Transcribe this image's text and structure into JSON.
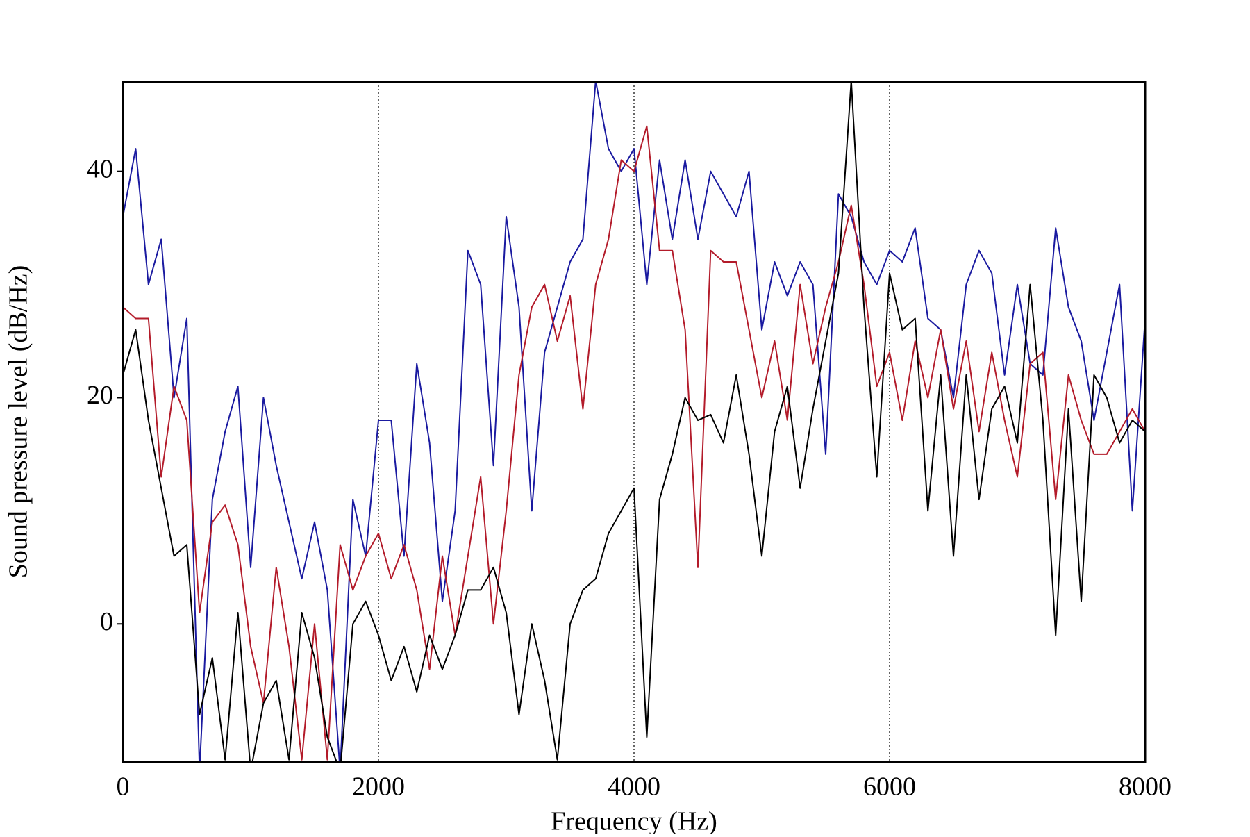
{
  "chart_data": {
    "type": "line",
    "xlabel": "Frequency (Hz)",
    "ylabel": "Sound pressure level (dB/Hz)",
    "x": [
      0,
      100,
      200,
      300,
      400,
      500,
      600,
      700,
      800,
      900,
      1000,
      1100,
      1200,
      1300,
      1400,
      1500,
      1600,
      1700,
      1800,
      1900,
      2000,
      2100,
      2200,
      2300,
      2400,
      2500,
      2600,
      2700,
      2800,
      2900,
      3000,
      3100,
      3200,
      3300,
      3400,
      3500,
      3600,
      3700,
      3800,
      3900,
      4000,
      4100,
      4200,
      4300,
      4400,
      4500,
      4600,
      4700,
      4800,
      4900,
      5000,
      5100,
      5200,
      5300,
      5400,
      5500,
      5600,
      5700,
      5800,
      5900,
      6000,
      6100,
      6200,
      6300,
      6400,
      6500,
      6600,
      6700,
      6800,
      6900,
      7000,
      7100,
      7200,
      7300,
      7400,
      7500,
      7600,
      7700,
      7800,
      7900,
      8000
    ],
    "series": [
      {
        "color": "#1a1aa0",
        "values": [
          36,
          42,
          30,
          34,
          20,
          27,
          -13,
          11,
          17,
          21,
          5,
          20,
          14,
          9,
          4,
          9,
          3,
          -13,
          11,
          6,
          18,
          18,
          6,
          23,
          16,
          2,
          10,
          33,
          30,
          14,
          36,
          28,
          10,
          24,
          28,
          32,
          34,
          48,
          42,
          40,
          42,
          30,
          41,
          34,
          41,
          34,
          40,
          38,
          36,
          40,
          26,
          32,
          29,
          32,
          30,
          15,
          38,
          36,
          32,
          30,
          33,
          32,
          35,
          27,
          26,
          20,
          30,
          33,
          31,
          22,
          30,
          23,
          22,
          35,
          28,
          25,
          18,
          24,
          30,
          10,
          27
        ]
      },
      {
        "color": "#b31b2a",
        "values": [
          28,
          27,
          27,
          13,
          21,
          18,
          1,
          9,
          10.5,
          7,
          -2,
          -7,
          5,
          -2,
          -12,
          0,
          -12,
          7,
          3,
          6,
          8,
          4,
          7,
          3,
          -4,
          6,
          -1,
          6,
          13,
          0,
          10,
          22,
          28,
          30,
          25,
          29,
          19,
          30,
          34,
          41,
          40,
          44,
          33,
          33,
          26,
          5,
          33,
          32,
          32,
          26,
          20,
          25,
          18,
          30,
          23,
          28,
          32,
          37,
          30,
          21,
          24,
          18,
          25,
          20,
          26,
          19,
          25,
          17,
          24,
          18,
          13,
          23,
          24,
          11,
          22,
          18,
          15,
          15,
          17,
          19,
          17
        ]
      },
      {
        "color": "#000000",
        "values": [
          22,
          26,
          18,
          12,
          6,
          7,
          -8,
          -3,
          -12,
          1,
          -13,
          -7,
          -5,
          -12,
          1,
          -3,
          -10,
          -13,
          0,
          2,
          -1,
          -5,
          -2,
          -6,
          -1,
          -4,
          -1,
          3,
          3,
          5,
          1,
          -8,
          0,
          -5,
          -12,
          0,
          3,
          4,
          8,
          10,
          12,
          -10,
          11,
          15,
          20,
          18,
          18.5,
          16,
          22,
          15,
          6,
          17,
          21,
          12,
          19,
          25,
          31,
          48,
          28,
          13,
          31,
          26,
          27,
          10,
          22,
          6,
          22,
          11,
          19,
          21,
          16,
          30,
          18,
          -1,
          19,
          2,
          22,
          20,
          16,
          18,
          17
        ]
      }
    ],
    "xlim": [
      0,
      8000
    ],
    "xticks": [
      0,
      2000,
      4000,
      6000,
      8000
    ],
    "ylim": [
      -12.2,
      47.9
    ],
    "yticks": [
      0,
      20,
      40
    ],
    "grid": "x"
  }
}
